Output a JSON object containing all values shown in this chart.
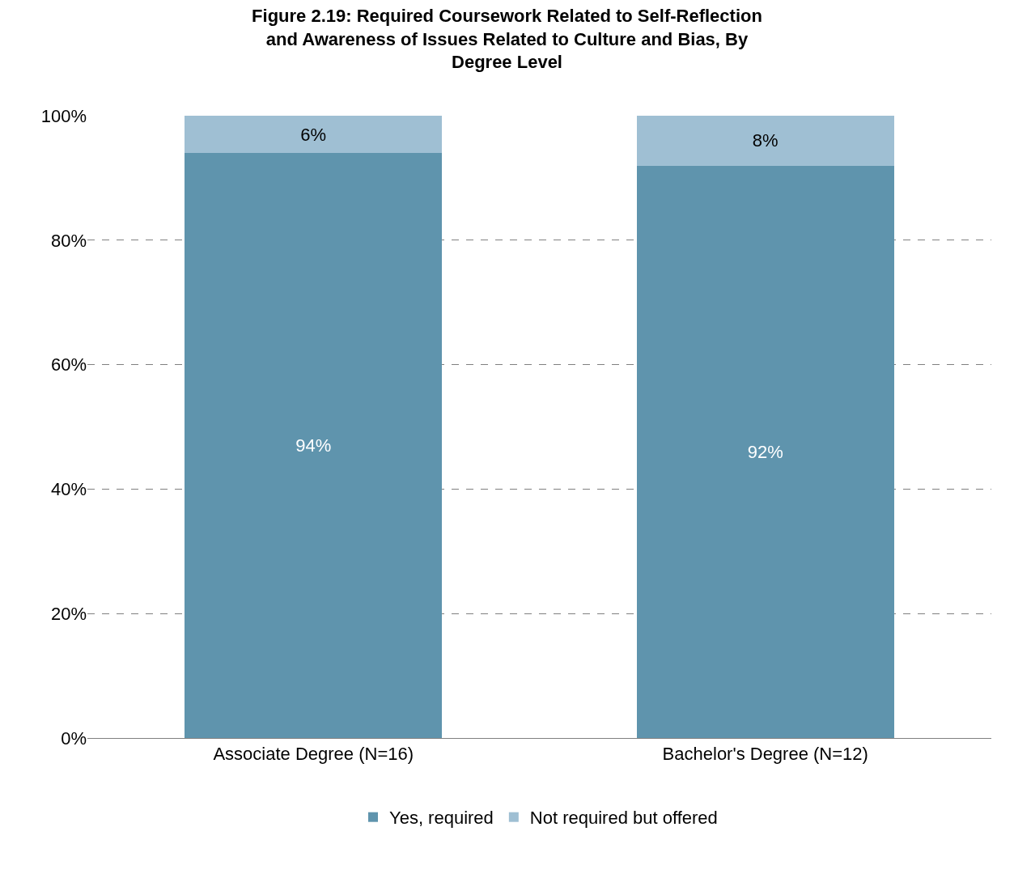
{
  "chart_data": {
    "type": "bar",
    "stacked": true,
    "title": "Figure 2.19: Required Coursework Related to Self-Reflection and Awareness of Issues Related to Culture and Bias, By Degree Level",
    "categories": [
      "Associate Degree (N=16)",
      "Bachelor's Degree (N=12)"
    ],
    "series": [
      {
        "name": "Yes, required",
        "color": "#5f94ad",
        "values": [
          94,
          92
        ],
        "value_labels": [
          "94%",
          "92%"
        ]
      },
      {
        "name": "Not required but offered",
        "color": "#9fbfd3",
        "values": [
          6,
          8
        ],
        "value_labels": [
          "6%",
          "8%"
        ]
      }
    ],
    "ylim": [
      0,
      100
    ],
    "yticks": [
      {
        "value": 0,
        "label": "0%"
      },
      {
        "value": 20,
        "label": "20%"
      },
      {
        "value": 40,
        "label": "40%"
      },
      {
        "value": 60,
        "label": "60%"
      },
      {
        "value": 80,
        "label": "80%"
      },
      {
        "value": 100,
        "label": "100%"
      }
    ],
    "grid": "y",
    "legend": "bottom"
  }
}
